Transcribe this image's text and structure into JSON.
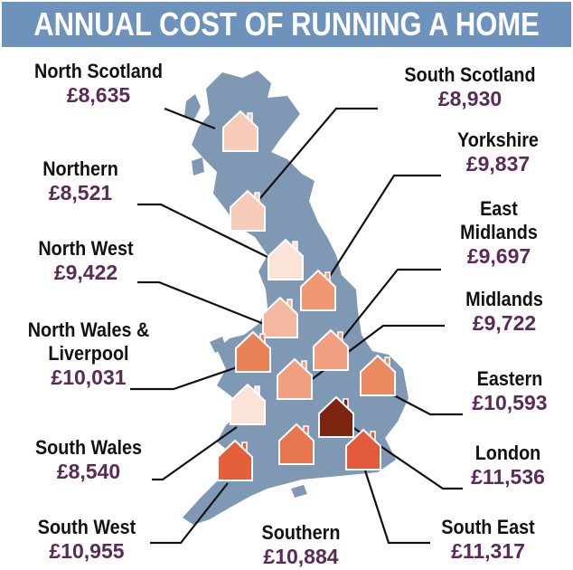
{
  "title": "ANNUAL COST OF RUNNING A HOME",
  "colors": {
    "title_bg": "#6d93bd",
    "map_fill": "#7f98b3",
    "cost_text": "#5b2a56",
    "leader_line": "#111111"
  },
  "regions": [
    {
      "id": "north-scotland",
      "name": "North Scotland",
      "cost": "£8,635",
      "house_color": "#f6cbb9"
    },
    {
      "id": "south-scotland",
      "name": "South Scotland",
      "cost": "£8,930",
      "house_color": "#f6cbb9"
    },
    {
      "id": "northern",
      "name": "Northern",
      "cost": "£8,521",
      "house_color": "#fbe3d8"
    },
    {
      "id": "yorkshire",
      "name": "Yorkshire",
      "cost": "£9,837",
      "house_color": "#ef9872"
    },
    {
      "id": "north-west",
      "name": "North West",
      "cost": "£9,422",
      "house_color": "#f4b79f"
    },
    {
      "id": "east-midlands",
      "name": "East Midlands",
      "name_lines": [
        "East",
        "Midlands"
      ],
      "cost": "£9,697",
      "house_color": "#f0a080"
    },
    {
      "id": "midlands",
      "name": "Midlands",
      "cost": "£9,722",
      "house_color": "#f0a080"
    },
    {
      "id": "north-wales-liverpool",
      "name": "North Wales & Liverpool",
      "name_lines": [
        "North Wales &",
        "Liverpool"
      ],
      "cost": "£10,031",
      "house_color": "#e98257"
    },
    {
      "id": "eastern",
      "name": "Eastern",
      "cost": "£10,593",
      "house_color": "#ea8a60"
    },
    {
      "id": "south-wales",
      "name": "South Wales",
      "cost": "£8,540",
      "house_color": "#fbe3d8"
    },
    {
      "id": "london",
      "name": "London",
      "cost": "£11,536",
      "house_color": "#7d2410"
    },
    {
      "id": "south-west",
      "name": "South West",
      "cost": "£10,955",
      "house_color": "#e4603a"
    },
    {
      "id": "southern",
      "name": "Southern",
      "cost": "£10,884",
      "house_color": "#e87750"
    },
    {
      "id": "south-east",
      "name": "South East",
      "cost": "£11,317",
      "house_color": "#e35a3a"
    }
  ]
}
